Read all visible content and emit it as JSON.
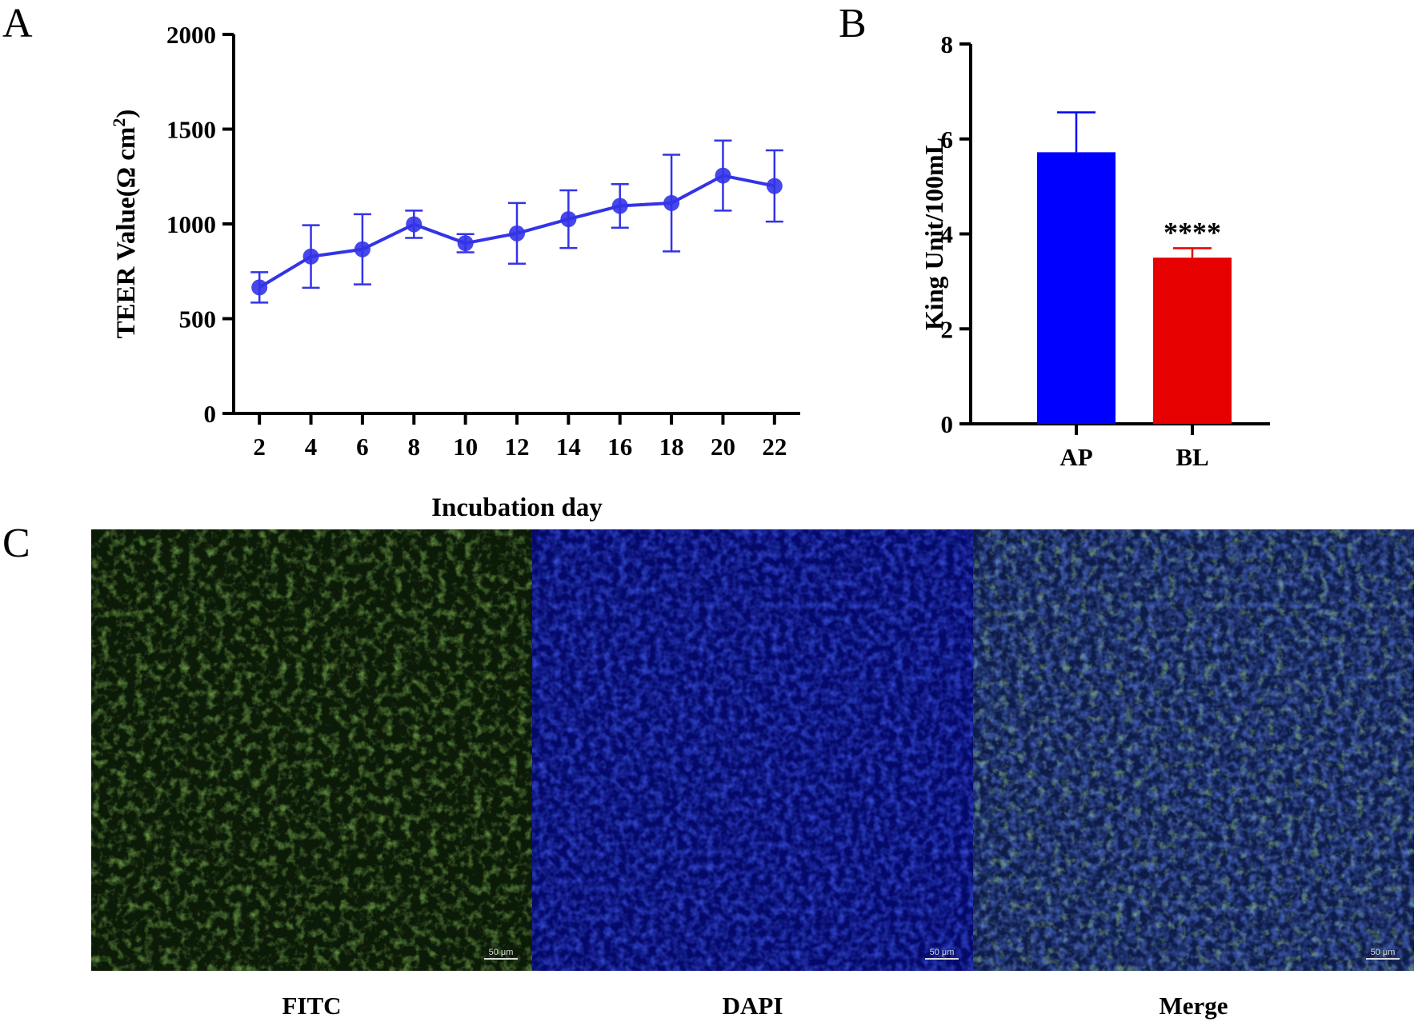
{
  "panels": {
    "a": "A",
    "b": "B",
    "c": "C"
  },
  "chart_data": [
    {
      "type": "line",
      "title": "",
      "xlabel": "Incubation day",
      "ylabel": "TEER Value(Ω cm²)",
      "ylabel_main": "TEER Value(Ω cm",
      "ylabel_sup": "2",
      "ylabel_close": ")",
      "x": [
        2,
        4,
        6,
        8,
        10,
        12,
        14,
        16,
        18,
        20,
        22
      ],
      "series": [
        {
          "name": "TEER",
          "color": "#3333e8",
          "values": [
            665,
            828,
            866,
            998,
            898,
            950,
            1025,
            1095,
            1110,
            1255,
            1200
          ],
          "error": [
            80,
            165,
            185,
            72,
            48,
            160,
            152,
            115,
            255,
            185,
            188
          ]
        }
      ],
      "ylim": [
        0,
        2000
      ],
      "yticks": [
        0,
        500,
        1000,
        1500,
        2000
      ],
      "xticks": [
        2,
        4,
        6,
        8,
        10,
        12,
        14,
        16,
        18,
        20,
        22
      ]
    },
    {
      "type": "bar",
      "title": "",
      "xlabel": "",
      "ylabel": "King Unit/100mL",
      "categories": [
        "AP",
        "BL"
      ],
      "values": [
        5.72,
        3.5
      ],
      "error": [
        0.84,
        0.2
      ],
      "colors": [
        "#0000ff",
        "#e60000"
      ],
      "significance": [
        "",
        "****"
      ],
      "ylim": [
        0,
        8
      ],
      "yticks": [
        0,
        2,
        4,
        6,
        8
      ]
    }
  ],
  "micrographs": [
    {
      "label": "FITC",
      "scale": "50 μm",
      "tint": "#5aa020"
    },
    {
      "label": "DAPI",
      "scale": "50 μm",
      "tint": "#1a22e0"
    },
    {
      "label": "Merge",
      "scale": "50 μm",
      "tint": "#2a40c8"
    }
  ]
}
